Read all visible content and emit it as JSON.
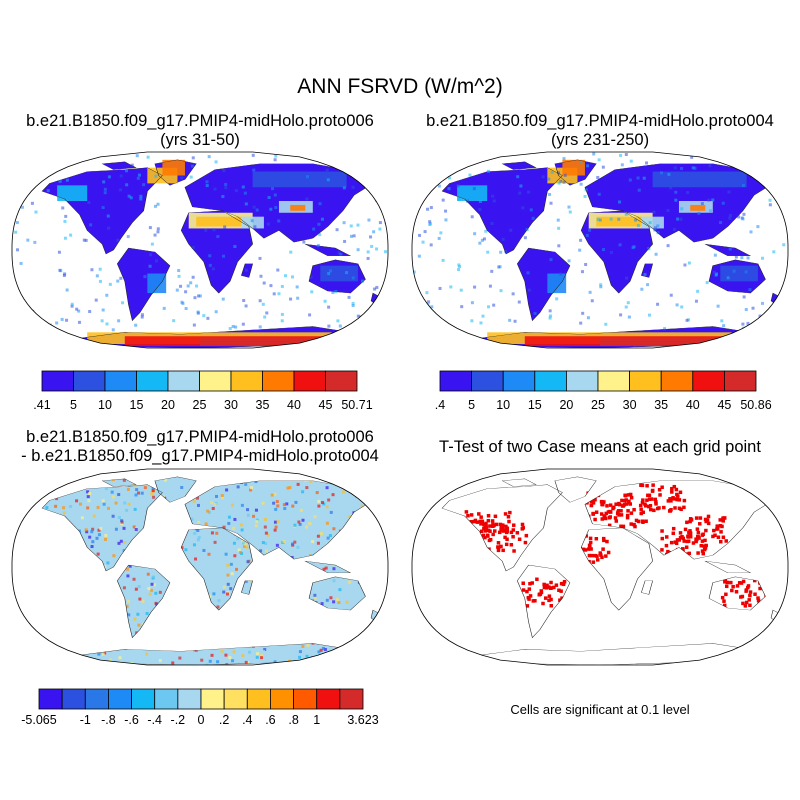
{
  "figure": {
    "title": "ANN FSRVD (W/m^2)"
  },
  "panels": [
    {
      "title_line1": "b.e21.B1850.f09_g17.PMIP4-midHolo.proto006",
      "title_line2": "(yrs 31-50)"
    },
    {
      "title_line1": "b.e21.B1850.f09_g17.PMIP4-midHolo.proto004",
      "title_line2": "(yrs 231-250)"
    },
    {
      "title_line1": "b.e21.B1850.f09_g17.PMIP4-midHolo.proto006",
      "title_line2": "- b.e21.B1850.f09_g17.PMIP4-midHolo.proto004"
    },
    {
      "title_line1": "T-Test of two Case means at each grid point",
      "note": "Cells are significant at 0.1 level"
    }
  ],
  "chart_data": [
    {
      "type": "heatmap",
      "title": "b.e21.B1850.f09_g17.PMIP4-midHolo.proto006 (yrs 31-50)",
      "colorbar": {
        "colors": [
          "#3a14f0",
          "#2c50e0",
          "#1e8af5",
          "#14b8f5",
          "#a8d8f0",
          "#fff28a",
          "#ffbf1e",
          "#ff7a00",
          "#f01010",
          "#d42a2a"
        ],
        "tick_labels": [
          ".41",
          "5",
          "10",
          "15",
          "20",
          "25",
          "30",
          "35",
          "40",
          "45",
          "50.71"
        ]
      }
    },
    {
      "type": "heatmap",
      "title": "b.e21.B1850.f09_g17.PMIP4-midHolo.proto004 (yrs 231-250)",
      "colorbar": {
        "colors": [
          "#3a14f0",
          "#2c50e0",
          "#1e8af5",
          "#14b8f5",
          "#a8d8f0",
          "#fff28a",
          "#ffbf1e",
          "#ff7a00",
          "#f01010",
          "#d42a2a"
        ],
        "tick_labels": [
          ".4",
          "5",
          "10",
          "15",
          "20",
          "25",
          "30",
          "35",
          "40",
          "45",
          "50.86"
        ]
      }
    },
    {
      "type": "heatmap",
      "title": "b.e21.B1850.f09_g17.PMIP4-midHolo.proto006 - b.e21.B1850.f09_g17.PMIP4-midHolo.proto004",
      "colorbar": {
        "colors": [
          "#3a14f0",
          "#2c50e0",
          "#2a78e8",
          "#1e8af5",
          "#14b8f5",
          "#6cc8f0",
          "#a8d8f0",
          "#fff28a",
          "#ffe060",
          "#ffbf1e",
          "#ff9000",
          "#ff5a00",
          "#f01010",
          "#d42a2a"
        ],
        "tick_labels": [
          "-5.065",
          "-1",
          "-.8",
          "-.6",
          "-.4",
          "-.2",
          "0",
          ".2",
          ".4",
          ".6",
          ".8",
          "1",
          "3.623"
        ]
      }
    },
    {
      "type": "heatmap",
      "title": "T-Test of two Case means at each grid point",
      "significant_color": "#ee0000"
    }
  ]
}
